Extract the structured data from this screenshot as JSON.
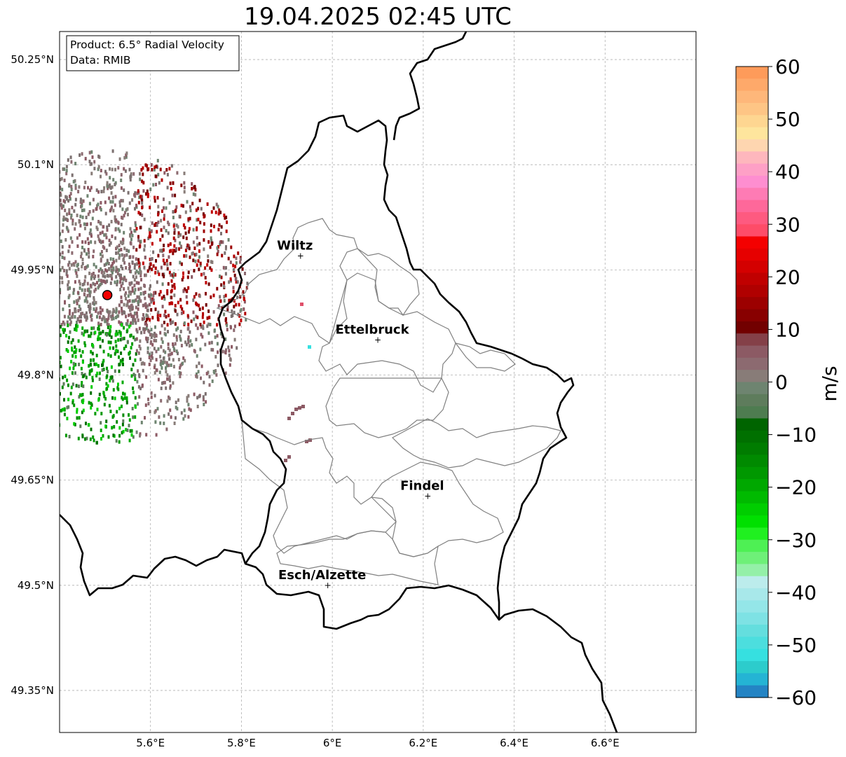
{
  "title": "19.04.2025 02:45 UTC",
  "info_box": {
    "product": "Product: 6.5° Radial Velocity",
    "data": "Data: RMIB"
  },
  "map": {
    "lon_range": [
      5.4,
      6.8
    ],
    "lat_range": [
      49.29,
      50.29
    ],
    "x_ticks": [
      "5.6°E",
      "5.8°E",
      "6°E",
      "6.2°E",
      "6.4°E",
      "6.6°E"
    ],
    "y_ticks": [
      "50.25°N",
      "50.1°N",
      "49.95°N",
      "49.8°N",
      "49.65°N",
      "49.5°N",
      "49.35°N"
    ],
    "grid": true,
    "cities": [
      {
        "name": "Wiltz",
        "lon": 5.93,
        "lat": 49.97
      },
      {
        "name": "Ettelbruck",
        "lon": 6.1,
        "lat": 49.85
      },
      {
        "name": "Findel",
        "lon": 6.21,
        "lat": 49.627
      },
      {
        "name": "Esch/Alzette",
        "lon": 5.99,
        "lat": 49.5
      }
    ],
    "radar_site": {
      "lon": 5.505,
      "lat": 49.914
    },
    "border_color": "#000000",
    "district_color": "#808080"
  },
  "colorbar": {
    "label": "m/s",
    "ticks": [
      "60",
      "50",
      "40",
      "30",
      "20",
      "10",
      "0",
      "−10",
      "−20",
      "−30",
      "−40",
      "−50",
      "−60"
    ],
    "range": [
      -60,
      60
    ],
    "colors_top_to_bottom": [
      "#fe9b5a",
      "#fea96a",
      "#feb77a",
      "#fec585",
      "#fed691",
      "#fee59d",
      "#fed6b0",
      "#feb7bd",
      "#fea0c6",
      "#fe8ed0",
      "#fe7bb4",
      "#fe689a",
      "#fe5a80",
      "#fe4c68",
      "#f40000",
      "#e60000",
      "#d40000",
      "#c00000",
      "#b00000",
      "#9c0000",
      "#880000",
      "#720000",
      "#844048",
      "#8c5a64",
      "#8c6a70",
      "#887c78",
      "#6e8470",
      "#5e7c5c",
      "#4e7c50",
      "#006400",
      "#007000",
      "#007c00",
      "#008a00",
      "#009800",
      "#00a800",
      "#00ba00",
      "#00ce00",
      "#00e000",
      "#20f020",
      "#4ef054",
      "#6ef078",
      "#94f0a8",
      "#bcecec",
      "#a8e8ea",
      "#94e6e8",
      "#7ee2e4",
      "#64dede",
      "#4cdede",
      "#36e0e0",
      "#2ccccc",
      "#24b4d4",
      "#2484c4"
    ]
  }
}
